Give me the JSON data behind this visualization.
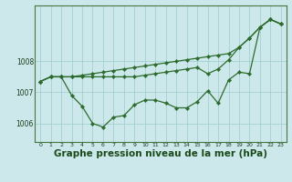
{
  "background_color": "#cce8ea",
  "grid_color": "#99cccc",
  "line_color": "#2d6b2d",
  "xlabel": "Graphe pression niveau de la mer (hPa)",
  "xlabel_fontsize": 7.5,
  "x_ticks": [
    0,
    1,
    2,
    3,
    4,
    5,
    6,
    7,
    8,
    9,
    10,
    11,
    12,
    13,
    14,
    15,
    16,
    17,
    18,
    19,
    20,
    21,
    22,
    23
  ],
  "ylim": [
    1005.4,
    1009.8
  ],
  "yticks": [
    1006,
    1007,
    1008
  ],
  "line1_y": [
    1007.35,
    1007.5,
    1007.5,
    1007.5,
    1007.55,
    1007.6,
    1007.65,
    1007.7,
    1007.75,
    1007.8,
    1007.85,
    1007.9,
    1007.95,
    1008.0,
    1008.05,
    1008.1,
    1008.15,
    1008.2,
    1008.25,
    1008.45,
    1008.75,
    1009.1,
    1009.35,
    1009.2
  ],
  "line2_y": [
    1007.35,
    1007.5,
    1007.5,
    1007.5,
    1007.5,
    1007.5,
    1007.5,
    1007.5,
    1007.5,
    1007.5,
    1007.55,
    1007.6,
    1007.65,
    1007.7,
    1007.75,
    1007.8,
    1007.6,
    1007.75,
    1008.05,
    1008.45,
    1008.75,
    1009.1,
    1009.35,
    1009.2
  ],
  "line3_y": [
    1007.35,
    1007.5,
    1007.5,
    1006.9,
    1006.55,
    1006.0,
    1005.88,
    1006.2,
    1006.25,
    1006.6,
    1006.75,
    1006.75,
    1006.65,
    1006.5,
    1006.5,
    1006.7,
    1007.05,
    1006.65,
    1007.4,
    1007.65,
    1007.6,
    1009.1,
    1009.35,
    1009.2
  ],
  "figsize": [
    3.2,
    2.0
  ],
  "dpi": 100
}
